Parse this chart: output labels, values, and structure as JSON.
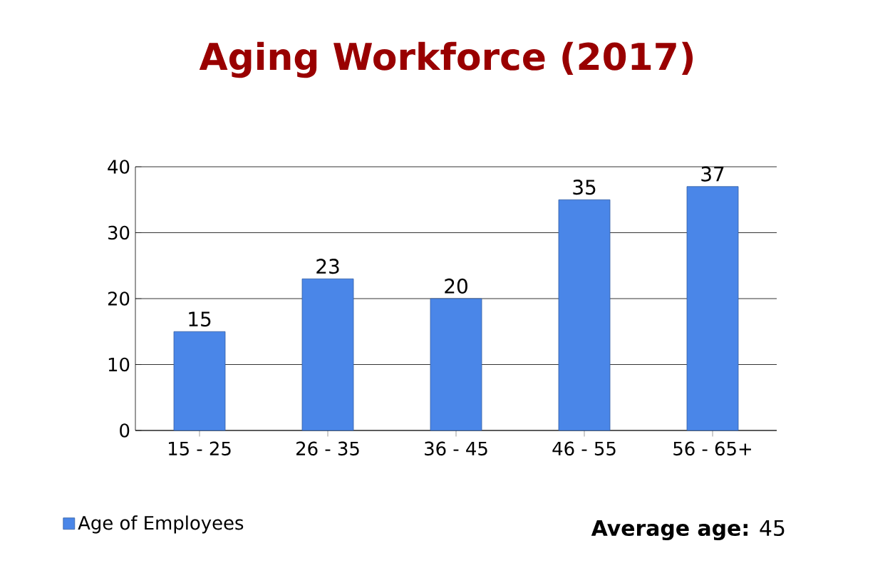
{
  "chart_data": {
    "type": "bar",
    "title": "Aging Workforce (2017)",
    "categories": [
      "15 - 25",
      "26 - 35",
      "36 - 45",
      "46 - 55",
      "56 - 65+"
    ],
    "series": [
      {
        "name": "Age of Employees",
        "color": "#4a86e8",
        "values": [
          15,
          23,
          20,
          35,
          37
        ]
      }
    ],
    "ylim": [
      0,
      40
    ],
    "yticks": [
      0,
      10,
      20,
      30,
      40
    ],
    "grid": "y",
    "data_labels": true,
    "legend": "bottom left",
    "annotations": [
      "**Average age:** 45"
    ]
  }
}
